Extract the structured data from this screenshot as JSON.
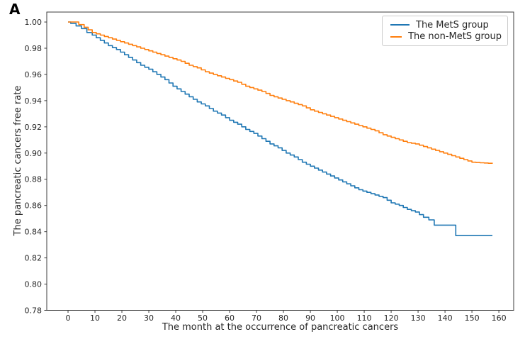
{
  "panel_label": "A",
  "colors": {
    "mets_line": "#1f77b4",
    "non_mets_line": "#ff7f0e",
    "axis": "#3c3c3c",
    "text": "#262626",
    "legend_border": "#cccccc",
    "background": "#ffffff"
  },
  "chart_data": {
    "type": "line",
    "style": "kaplan-meier-step",
    "title": "",
    "xlabel": "The month at the occurrence of pancreatic cancers",
    "ylabel": "The pancreatic cancers free rate",
    "xlim": [
      -7.9,
      165.5
    ],
    "ylim": [
      0.78,
      1.0076
    ],
    "xticks": [
      "0",
      "10",
      "20",
      "30",
      "40",
      "50",
      "60",
      "70",
      "80",
      "90",
      "100",
      "110",
      "120",
      "130",
      "140",
      "150",
      "160"
    ],
    "yticks": [
      "1.00",
      "0.98",
      "0.96",
      "0.94",
      "0.92",
      "0.90",
      "0.88",
      "0.86",
      "0.84",
      "0.82",
      "0.80",
      "0.78"
    ],
    "grid": false,
    "legend": {
      "position": "upper right"
    },
    "series": [
      {
        "name": "The MetS group",
        "color": "#1f77b4",
        "x_unit": "months",
        "points": [
          [
            0,
            1.0
          ],
          [
            1,
            0.999
          ],
          [
            3,
            0.997
          ],
          [
            5,
            0.995
          ],
          [
            7,
            0.992
          ],
          [
            9,
            0.99
          ],
          [
            12,
            0.986
          ],
          [
            15,
            0.982
          ],
          [
            18,
            0.979
          ],
          [
            21,
            0.975
          ],
          [
            24,
            0.971
          ],
          [
            27,
            0.967
          ],
          [
            30,
            0.964
          ],
          [
            33,
            0.96
          ],
          [
            36,
            0.956
          ],
          [
            39,
            0.951
          ],
          [
            42,
            0.947
          ],
          [
            45,
            0.943
          ],
          [
            48,
            0.939
          ],
          [
            51,
            0.936
          ],
          [
            54,
            0.932
          ],
          [
            57,
            0.929
          ],
          [
            60,
            0.925
          ],
          [
            63,
            0.922
          ],
          [
            66,
            0.918
          ],
          [
            69,
            0.915
          ],
          [
            72,
            0.911
          ],
          [
            75,
            0.907
          ],
          [
            78,
            0.904
          ],
          [
            81,
            0.9
          ],
          [
            84,
            0.897
          ],
          [
            87,
            0.893
          ],
          [
            90,
            0.89
          ],
          [
            93,
            0.887
          ],
          [
            96,
            0.884
          ],
          [
            99,
            0.881
          ],
          [
            102,
            0.878
          ],
          [
            105,
            0.875
          ],
          [
            108,
            0.872
          ],
          [
            111,
            0.87
          ],
          [
            114,
            0.868
          ],
          [
            117,
            0.866
          ],
          [
            120,
            0.862
          ],
          [
            123,
            0.86
          ],
          [
            126,
            0.857
          ],
          [
            129,
            0.855
          ],
          [
            132,
            0.851
          ],
          [
            134,
            0.849
          ],
          [
            136,
            0.845
          ],
          [
            143,
            0.845
          ],
          [
            144,
            0.837
          ],
          [
            157.6,
            0.837
          ]
        ]
      },
      {
        "name": "The non-MetS group",
        "color": "#ff7f0e",
        "x_unit": "months",
        "points": [
          [
            0,
            1.0
          ],
          [
            2,
            1.0
          ],
          [
            4,
            0.998
          ],
          [
            6,
            0.996
          ],
          [
            9,
            0.992
          ],
          [
            12,
            0.99
          ],
          [
            15,
            0.988
          ],
          [
            18,
            0.986
          ],
          [
            21,
            0.984
          ],
          [
            24,
            0.982
          ],
          [
            27,
            0.98
          ],
          [
            30,
            0.978
          ],
          [
            33,
            0.976
          ],
          [
            36,
            0.974
          ],
          [
            39,
            0.972
          ],
          [
            42,
            0.97
          ],
          [
            45,
            0.967
          ],
          [
            48,
            0.965
          ],
          [
            51,
            0.962
          ],
          [
            54,
            0.96
          ],
          [
            57,
            0.958
          ],
          [
            60,
            0.956
          ],
          [
            63,
            0.954
          ],
          [
            66,
            0.951
          ],
          [
            69,
            0.949
          ],
          [
            72,
            0.947
          ],
          [
            75,
            0.944
          ],
          [
            78,
            0.942
          ],
          [
            81,
            0.94
          ],
          [
            84,
            0.938
          ],
          [
            87,
            0.936
          ],
          [
            90,
            0.933
          ],
          [
            93,
            0.931
          ],
          [
            96,
            0.929
          ],
          [
            99,
            0.927
          ],
          [
            102,
            0.925
          ],
          [
            105,
            0.923
          ],
          [
            108,
            0.921
          ],
          [
            111,
            0.919
          ],
          [
            114,
            0.917
          ],
          [
            117,
            0.914
          ],
          [
            120,
            0.912
          ],
          [
            123,
            0.91
          ],
          [
            126,
            0.908
          ],
          [
            129,
            0.907
          ],
          [
            132,
            0.905
          ],
          [
            135,
            0.903
          ],
          [
            138,
            0.901
          ],
          [
            141,
            0.899
          ],
          [
            144,
            0.897
          ],
          [
            147,
            0.895
          ],
          [
            150,
            0.893
          ],
          [
            157.6,
            0.892
          ]
        ]
      }
    ]
  }
}
